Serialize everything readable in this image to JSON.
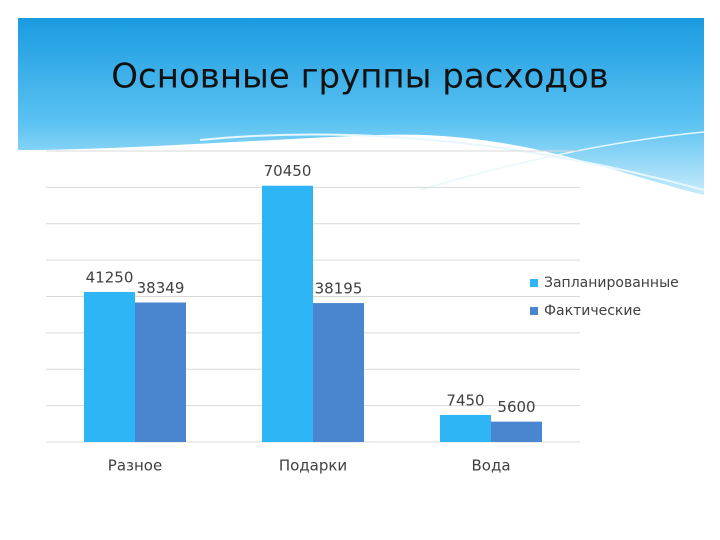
{
  "chart_data": {
    "type": "bar",
    "title": "Основные группы расходов",
    "categories": [
      "Разное",
      "Подарки",
      "Вода"
    ],
    "series": [
      {
        "name": "Запланированные",
        "color": "#2db5f5",
        "values": [
          41250,
          70450,
          7450
        ]
      },
      {
        "name": "Фактические",
        "color": "#4a86d0",
        "values": [
          38349,
          38195,
          5600
        ]
      }
    ],
    "ylim": [
      0,
      80000
    ],
    "yticks": [
      0,
      10000,
      20000,
      30000,
      40000,
      50000,
      60000,
      70000,
      80000
    ],
    "grid": true,
    "legend": "right"
  }
}
